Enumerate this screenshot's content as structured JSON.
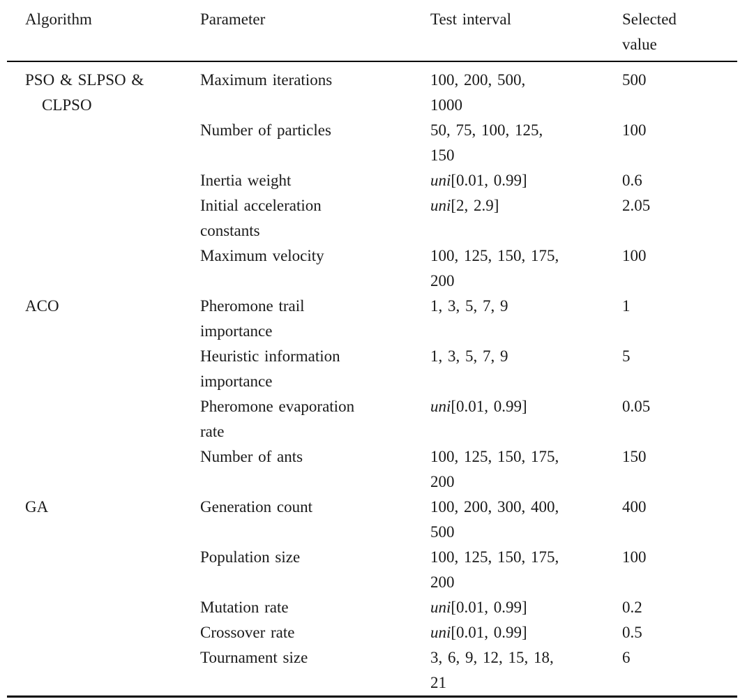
{
  "table": {
    "columns": [
      "Algorithm",
      "Parameter",
      "Test interval",
      "Selected value"
    ],
    "rows": [
      {
        "algorithm": "PSO & SLPSO & CLPSO",
        "parameter": "Maximum iterations",
        "interval_italic": "",
        "interval": "100, 200, 500, 1000",
        "selected": "500"
      },
      {
        "algorithm": "",
        "parameter": "Number of particles",
        "interval_italic": "",
        "interval": "50, 75, 100, 125, 150",
        "selected": "100"
      },
      {
        "algorithm": "",
        "parameter": "Inertia weight",
        "interval_italic": "uni",
        "interval": "[0.01, 0.99]",
        "selected": "0.6"
      },
      {
        "algorithm": "",
        "parameter": "Initial acceleration constants",
        "interval_italic": "uni",
        "interval": "[2, 2.9]",
        "selected": "2.05"
      },
      {
        "algorithm": "",
        "parameter": "Maximum velocity",
        "interval_italic": "",
        "interval": "100, 125, 150, 175, 200",
        "selected": "100"
      },
      {
        "algorithm": "ACO",
        "parameter": "Pheromone trail importance",
        "interval_italic": "",
        "interval": "1, 3, 5, 7, 9",
        "selected": "1"
      },
      {
        "algorithm": "",
        "parameter": "Heuristic information importance",
        "interval_italic": "",
        "interval": "1, 3, 5, 7, 9",
        "selected": "5"
      },
      {
        "algorithm": "",
        "parameter": "Pheromone evaporation rate",
        "interval_italic": "uni",
        "interval": "[0.01, 0.99]",
        "selected": "0.05"
      },
      {
        "algorithm": "",
        "parameter": "Number of ants",
        "interval_italic": "",
        "interval": "100, 125, 150, 175, 200",
        "selected": "150"
      },
      {
        "algorithm": "GA",
        "parameter": "Generation count",
        "interval_italic": "",
        "interval": "100, 200, 300, 400, 500",
        "selected": "400"
      },
      {
        "algorithm": "",
        "parameter": "Population size",
        "interval_italic": "",
        "interval": "100, 125, 150, 175, 200",
        "selected": "100"
      },
      {
        "algorithm": "",
        "parameter": "Mutation rate",
        "interval_italic": "uni",
        "interval": "[0.01, 0.99]",
        "selected": "0.2"
      },
      {
        "algorithm": "",
        "parameter": "Crossover rate",
        "interval_italic": "uni",
        "interval": "[0.01, 0.99]",
        "selected": "0.5"
      },
      {
        "algorithm": "",
        "parameter": "Tournament size",
        "interval_italic": "",
        "interval": "3, 6, 9, 12, 15, 18, 21",
        "selected": "6"
      }
    ]
  },
  "colors": {
    "text": "#1a1a1a",
    "rule": "#000000",
    "background": "#ffffff"
  }
}
